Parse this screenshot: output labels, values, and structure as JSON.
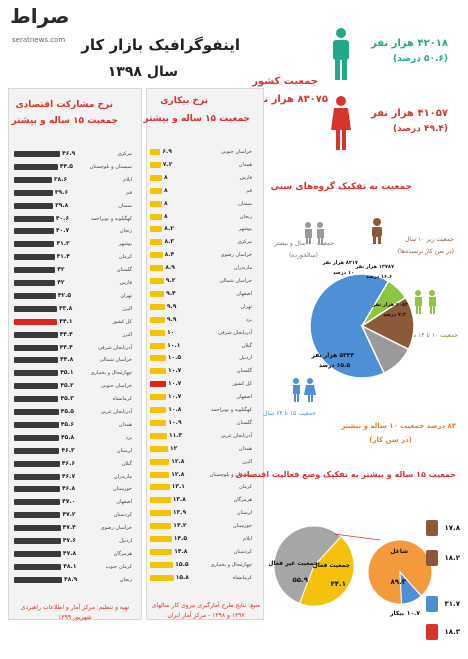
{
  "header": {
    "logo_text": "صراط",
    "logo_sub": "seratnews.com",
    "title_line1": "اینفوگرافیک بازار کار",
    "title_line2": "سال ۱۳۹۸"
  },
  "population": {
    "label_line1": "جمعیت کشور",
    "label_line2": "۸۳۰۷۵ هزار نفر",
    "men_line1": "۴۲۰۱۸ هزار نفر",
    "men_line2": "(۵۰.۶ درصد)",
    "women_line1": "۴۱۰۵۷ هزار نفر",
    "women_line2": "(۴۹.۴ درصد)",
    "men_color": "#22a88a",
    "women_color": "#d8342d"
  },
  "left_chart": {
    "title_line1": "نرخ مشارکت اقتصادی",
    "title_line2": "جمعیت ۱۵ ساله و بیشتر",
    "rows": [
      {
        "province": "مرکزی",
        "value": "۴۶.۹",
        "v": 46.9
      },
      {
        "province": "سیستان و بلوچستان",
        "value": "۴۴.۵",
        "v": 44.5
      },
      {
        "province": "ایلام",
        "value": "۳۸.۶",
        "v": 38.6
      },
      {
        "province": "قم",
        "value": "۳۹.۶",
        "v": 39.6
      },
      {
        "province": "سمنان",
        "value": "۳۹.۸",
        "v": 39.8
      },
      {
        "province": "کهگیلویه و بویراحمد",
        "value": "۴۰.۶",
        "v": 40.6
      },
      {
        "province": "زنجان",
        "value": "۴۰.۷",
        "v": 40.7
      },
      {
        "province": "بوشهر",
        "value": "۴۱.۲",
        "v": 41.2
      },
      {
        "province": "کرمان",
        "value": "۴۱.۴",
        "v": 41.4
      },
      {
        "province": "گلستان",
        "value": "۴۲",
        "v": 42
      },
      {
        "province": "فارس",
        "value": "۴۲",
        "v": 42
      },
      {
        "province": "تهران",
        "value": "۴۲.۵",
        "v": 42.5
      },
      {
        "province": "البرز",
        "value": "۴۳.۸",
        "v": 43.8
      },
      {
        "province": "کل کشور",
        "value": "۴۴.۱",
        "v": 44.1,
        "highlight": true
      },
      {
        "province": "البرز",
        "value": "۴۴.۴",
        "v": 44.4
      },
      {
        "province": "آذربایجان شرقی",
        "value": "۴۴.۴",
        "v": 44.4
      },
      {
        "province": "خراسان شمالی",
        "value": "۴۴.۸",
        "v": 44.8
      },
      {
        "province": "چهارمحال و بختیاری",
        "value": "۴۵.۱",
        "v": 45.1
      },
      {
        "province": "خراسان جنوبی",
        "value": "۴۵.۲",
        "v": 45.2
      },
      {
        "province": "کرمانشاه",
        "value": "۴۵.۳",
        "v": 45.3
      },
      {
        "province": "آذربایجان غربی",
        "value": "۴۵.۵",
        "v": 45.5
      },
      {
        "province": "همدان",
        "value": "۴۵.۶",
        "v": 45.6
      },
      {
        "province": "یزد",
        "value": "۴۵.۸",
        "v": 45.8
      },
      {
        "province": "لرستان",
        "value": "۴۶.۳",
        "v": 46.3
      },
      {
        "province": "گیلان",
        "value": "۴۶.۶",
        "v": 46.6
      },
      {
        "province": "مازندران",
        "value": "۴۶.۷",
        "v": 46.7
      },
      {
        "province": "خوزستان",
        "value": "۴۶.۸",
        "v": 46.8
      },
      {
        "province": "اصفهان",
        "value": "۴۷.۰",
        "v": 47.0
      },
      {
        "province": "کردستان",
        "value": "۴۷.۲",
        "v": 47.2
      },
      {
        "province": "خراسان رضوی",
        "value": "۴۷.۴",
        "v": 47.4
      },
      {
        "province": "اردبیل",
        "value": "۴۷.۶",
        "v": 47.6
      },
      {
        "province": "هرمزگان",
        "value": "۴۷.۸",
        "v": 47.8
      },
      {
        "province": "کرمان جنوب",
        "value": "۴۸.۱",
        "v": 48.1
      },
      {
        "province": "زنجان",
        "value": "۴۸.۹",
        "v": 48.9
      }
    ],
    "bar_color": "#3a3a3a",
    "highlight_color": "#e0221b"
  },
  "right_chart": {
    "title_line1": "نرخ بیکاری",
    "title_line2": "جمعیت ۱۵ ساله و بیشتر",
    "rows": [
      {
        "province": "خراسان جنوبی",
        "value": "۶.۹",
        "v": 6.9
      },
      {
        "province": "همدان",
        "value": "۷.۲",
        "v": 7.2
      },
      {
        "province": "فارس",
        "value": "۸",
        "v": 8
      },
      {
        "province": "قم",
        "value": "۸",
        "v": 8
      },
      {
        "province": "سمنان",
        "value": "۸",
        "v": 8
      },
      {
        "province": "زنجان",
        "value": "۸",
        "v": 8
      },
      {
        "province": "بوشهر",
        "value": "۸.۲",
        "v": 8.2
      },
      {
        "province": "مرکزی",
        "value": "۸.۳",
        "v": 8.3
      },
      {
        "province": "خراسان رضوی",
        "value": "۸.۴",
        "v": 8.4
      },
      {
        "province": "مازندران",
        "value": "۸.۹",
        "v": 8.9
      },
      {
        "province": "خراسان شمالی",
        "value": "۹.۲",
        "v": 9.2
      },
      {
        "province": "اصفهان",
        "value": "۹.۴",
        "v": 9.4
      },
      {
        "province": "تهران",
        "value": "۹.۹",
        "v": 9.9
      },
      {
        "province": "یزد",
        "value": "۹.۹",
        "v": 9.9
      },
      {
        "province": "آذربایجان شرقی",
        "value": "۱۰",
        "v": 10
      },
      {
        "province": "گیلان",
        "value": "۱۰.۱",
        "v": 10.1
      },
      {
        "province": "اردبیل",
        "value": "۱۰.۵",
        "v": 10.5
      },
      {
        "province": "گلستان",
        "value": "۱۰.۷",
        "v": 10.7
      },
      {
        "province": "کل کشور",
        "value": "۱۰.۷",
        "v": 10.7,
        "highlight": true
      },
      {
        "province": "اصفهان",
        "value": "۱۰.۷",
        "v": 10.7
      },
      {
        "province": "کهگیلویه و بویراحمد",
        "value": "۱۰.۸",
        "v": 10.8
      },
      {
        "province": "گلستان",
        "value": "۱۰.۹",
        "v": 10.9
      },
      {
        "province": "آذربایجان غربی",
        "value": "۱۱.۳",
        "v": 11.3
      },
      {
        "province": "همدان",
        "value": "۱۲",
        "v": 12
      },
      {
        "province": "البرز",
        "value": "۱۲.۸",
        "v": 12.8
      },
      {
        "province": "سیستان و بلوچستان",
        "value": "۱۲.۸",
        "v": 12.8
      },
      {
        "province": "کرمان",
        "value": "۱۳.۱",
        "v": 13.1
      },
      {
        "province": "هرمزگان",
        "value": "۱۳.۸",
        "v": 13.8
      },
      {
        "province": "لرستان",
        "value": "۱۳.۹",
        "v": 13.9
      },
      {
        "province": "خوزستان",
        "value": "۱۴.۲",
        "v": 14.2
      },
      {
        "province": "ایلام",
        "value": "۱۴.۵",
        "v": 14.5
      },
      {
        "province": "کردستان",
        "value": "۱۴.۸",
        "v": 14.8
      },
      {
        "province": "چهارمحال و بختیاری",
        "value": "۱۵.۵",
        "v": 15.5
      },
      {
        "province": "کرمانشاه",
        "value": "۱۵.۸",
        "v": 15.8
      }
    ],
    "bar_color": "#f2c500",
    "highlight_color": "#e0221b"
  },
  "age_groups": {
    "title": "جمعیت به تفکیک گروه‌های سنی",
    "under10_line1": "جمعیت زیر ۱۰ سال",
    "under10_line2": "(در سن کار نرسیده‌ها)",
    "age10_14": "جمعیت ۱۰ تا ۱۴ سال",
    "age15_64": "جمعیت ۱۵ تا ۶۴ سال",
    "age60_line1": "جمعیت ۶۰ سال و بیشتر",
    "age60_line2": "(سالخورده)",
    "above10_line1": "۸۳ درصد جمعیت ۱۰ ساله و بیشتر",
    "above10_line2": "(در سن کار)",
    "slice_big_line1": "۵۴۴۴ هزار نفر",
    "slice_big_line2": "۶۵.۵ درصد",
    "slice_brown_line1": "۱۳۷۸۷ هزار نفر",
    "slice_brown_line2": "۱۶.۶ درصد",
    "slice_green_line1": "۶۰۸۴ هزار نفر",
    "slice_green_line2": "۷.۳ درصد",
    "slice_grey_line1": "۸۳۱۷ هزار نفر",
    "slice_grey_line2": "۱۰ درصد",
    "colors": {
      "blue": "#4e8fd6",
      "brown": "#8a5a3b",
      "green": "#8cc63f",
      "grey": "#9a9a9a"
    }
  },
  "activity": {
    "title": "جمعیت ۱۵ ساله و بیشتر به تفکیک وضع فعالیت اقتصادی",
    "inactive_label": "جمعیت غیر فعال",
    "inactive_value": "۵۵.۹",
    "active_label": "جمعیت فعال",
    "active_value": "۴۴.۱",
    "employed_label": "شاغل",
    "employed_value": "۸۹.۳",
    "unemployed_label": "بیکار",
    "unemployed_value": "۱۰.۷",
    "side1": "۱۷.۸",
    "side2": "۱۸.۲",
    "side3": "۳۱.۷",
    "side4": "۱۸.۳",
    "colors": {
      "grey": "#a6a6a6",
      "yellow": "#f4c20d",
      "orange": "#f39a3c",
      "blue": "#4e8fd6"
    }
  },
  "footer": {
    "right_text_line1": "منبع: نتایج طرح آمارگیری نیروی کار سالهای",
    "right_text_line2": "۱۳۹۷ و ۱۳۹۸ - مرکز آمار ایران",
    "left_text_line1": "تهیه و تنظیم: مرکز آمار و اطلاعات راهبردی",
    "left_text_line2": "شهریور ۱۳۹۹"
  }
}
